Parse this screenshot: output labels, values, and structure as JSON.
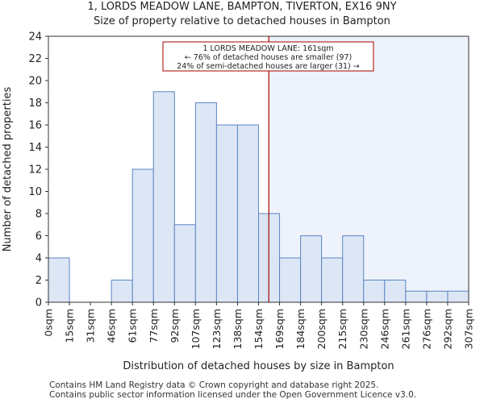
{
  "title_line1": "1, LORDS MEADOW LANE, BAMPTON, TIVERTON, EX16 9NY",
  "title_line2": "Size of property relative to detached houses in Bampton",
  "footer_line1": "Contains HM Land Registry data © Crown copyright and database right 2025.",
  "footer_line2": "Contains public sector information licensed under the Open Government Licence v3.0.",
  "colors": {
    "bar_fill": "#dce6f5",
    "bar_stroke": "#5b86c4",
    "highlight_bg": "#eef2fa",
    "marker_line": "#aa0000",
    "annotation_border": "#aa0000"
  },
  "chart_data": {
    "type": "bar",
    "title": "Size of property relative to detached houses in Bampton",
    "xlabel": "Distribution of detached houses by size in Bampton",
    "ylabel": "Number of detached properties",
    "ylim": [
      0,
      24
    ],
    "yticks": [
      0,
      2,
      4,
      6,
      8,
      10,
      12,
      14,
      16,
      18,
      20,
      22,
      24
    ],
    "xticks": [
      "0sqm",
      "15sqm",
      "31sqm",
      "46sqm",
      "61sqm",
      "77sqm",
      "92sqm",
      "107sqm",
      "123sqm",
      "138sqm",
      "154sqm",
      "169sqm",
      "184sqm",
      "200sqm",
      "215sqm",
      "230sqm",
      "246sqm",
      "261sqm",
      "276sqm",
      "292sqm",
      "307sqm"
    ],
    "values": [
      4,
      0,
      0,
      2,
      12,
      19,
      7,
      18,
      16,
      16,
      8,
      4,
      6,
      4,
      6,
      2,
      2,
      1,
      1,
      1
    ],
    "marker_value_sqm": 161,
    "annotation": {
      "line1": "1 LORDS MEADOW LANE: 161sqm",
      "line2": "← 76% of detached houses are smaller (97)",
      "line3": "24% of semi-detached houses are larger (31) →"
    }
  }
}
